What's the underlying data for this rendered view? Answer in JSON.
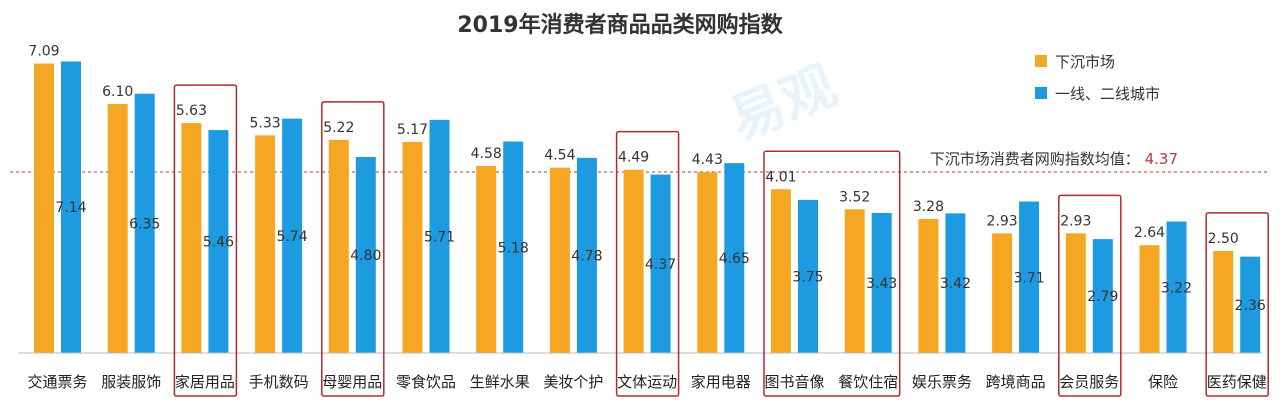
{
  "chart_data": {
    "type": "bar",
    "title": "2019年消费者商品品类网购指数",
    "categories": [
      "交通票务",
      "服装服饰",
      "家居用品",
      "手机数码",
      "母婴用品",
      "零食饮品",
      "生鲜水果",
      "美妆个护",
      "文体运动",
      "家用电器",
      "图书音像",
      "餐饮住宿",
      "娱乐票务",
      "跨境商品",
      "会员服务",
      "保险",
      "医药保健"
    ],
    "series": [
      {
        "name": "下沉市场",
        "color": "#f5a623",
        "values": [
          7.09,
          6.1,
          5.63,
          5.33,
          5.22,
          5.17,
          4.58,
          4.54,
          4.49,
          4.43,
          4.01,
          3.52,
          3.28,
          2.93,
          2.93,
          2.64,
          2.5
        ]
      },
      {
        "name": "一线、二线城市",
        "color": "#1e9be0",
        "values": [
          7.14,
          6.35,
          5.46,
          5.74,
          4.8,
          5.71,
          5.18,
          4.78,
          4.37,
          4.65,
          3.75,
          3.43,
          3.42,
          3.71,
          2.79,
          3.22,
          2.36
        ]
      }
    ],
    "reference_line": {
      "label": "下沉市场消费者网购指数均值：",
      "value_text": "4.37",
      "value": 4.37,
      "color": "#c0393b"
    },
    "highlighted_categories": [
      "家居用品",
      "母婴用品",
      "文体运动",
      "图书音像",
      "餐饮住宿",
      "会员服务",
      "医药保健"
    ],
    "highlight_color": "#b22a2e",
    "legend_position": "top-right",
    "watermark_text": "易观",
    "ylim": [
      0,
      7.4
    ],
    "grid": false
  }
}
